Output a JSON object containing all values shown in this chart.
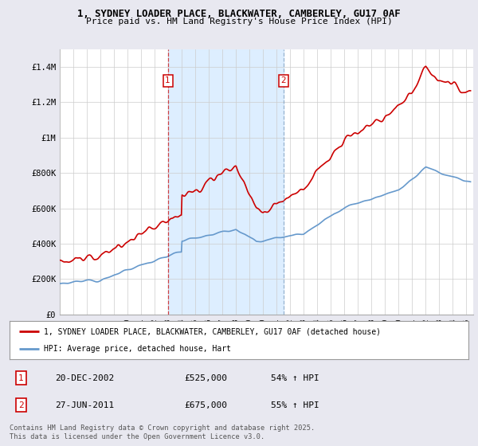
{
  "title_line1": "1, SYDNEY LOADER PLACE, BLACKWATER, CAMBERLEY, GU17 0AF",
  "title_line2": "Price paid vs. HM Land Registry's House Price Index (HPI)",
  "sale1_date_num": 2002.97,
  "sale2_date_num": 2011.49,
  "sale1_label": "1",
  "sale2_label": "2",
  "legend_line1": "1, SYDNEY LOADER PLACE, BLACKWATER, CAMBERLEY, GU17 0AF (detached house)",
  "legend_line2": "HPI: Average price, detached house, Hart",
  "table_row1": [
    "1",
    "20-DEC-2002",
    "£525,000",
    "54% ↑ HPI"
  ],
  "table_row2": [
    "2",
    "27-JUN-2011",
    "£675,000",
    "55% ↑ HPI"
  ],
  "footnote": "Contains HM Land Registry data © Crown copyright and database right 2025.\nThis data is licensed under the Open Government Licence v3.0.",
  "red_color": "#cc0000",
  "blue_color": "#6699cc",
  "shade_color": "#ddeeff",
  "vline1_color": "#cc0000",
  "vline2_color": "#7799bb",
  "grid_color": "#cccccc",
  "bg_color": "#e8e8f0",
  "plot_bg": "#ffffff",
  "ylim_min": 0,
  "ylim_max": 1500000,
  "xmin": 1995.0,
  "xmax": 2025.5
}
